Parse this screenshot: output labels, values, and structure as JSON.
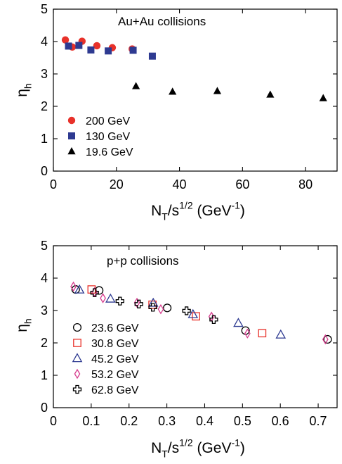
{
  "chart_data": [
    {
      "type": "scatter",
      "title": "Au+Au collisions",
      "xlabel": "N_T/s^{1/2} (GeV^{-1})",
      "ylabel": "η_h",
      "xlim": [
        0,
        90
      ],
      "ylim": [
        0,
        5
      ],
      "xticks": [
        0,
        20,
        40,
        60,
        80
      ],
      "yticks": [
        0,
        1,
        2,
        3,
        4,
        5
      ],
      "grid": false,
      "legend_position": "bottom-left",
      "series": [
        {
          "name": "200 GeV",
          "marker": "filled-circle",
          "color": "#e8312a",
          "x": [
            3.8,
            6.0,
            9.1,
            13.8,
            18.7,
            25.0
          ],
          "y": [
            4.05,
            3.83,
            4.01,
            3.87,
            3.81,
            3.77
          ]
        },
        {
          "name": "130 GeV",
          "marker": "filled-square",
          "color": "#2e3a91",
          "x": [
            4.8,
            8.1,
            11.9,
            17.4,
            25.3,
            31.4
          ],
          "y": [
            3.86,
            3.88,
            3.74,
            3.71,
            3.73,
            3.55
          ]
        },
        {
          "name": "19.6 GeV",
          "marker": "filled-triangle",
          "color": "#000000",
          "x": [
            26.2,
            37.8,
            52.0,
            68.8,
            85.6
          ],
          "y": [
            2.62,
            2.45,
            2.47,
            2.36,
            2.25
          ]
        }
      ]
    },
    {
      "type": "scatter",
      "title": "p+p collisions",
      "xlabel": "N_T/s^{1/2} (GeV^{-1})",
      "ylabel": "η_h",
      "xlim": [
        0,
        0.75
      ],
      "ylim": [
        0,
        5
      ],
      "xticks": [
        0,
        0.1,
        0.2,
        0.3,
        0.4,
        0.5,
        0.6,
        0.7
      ],
      "yticks": [
        0,
        1,
        2,
        3,
        4,
        5
      ],
      "grid": false,
      "legend_position": "bottom-left",
      "series": [
        {
          "name": "23.6 GeV",
          "marker": "open-circle",
          "color": "#000000",
          "x": [
            0.059,
            0.121,
            0.301,
            0.508,
            0.725
          ],
          "y": [
            3.65,
            3.62,
            3.08,
            2.38,
            2.11
          ]
        },
        {
          "name": "30.8 GeV",
          "marker": "open-square",
          "color": "#e8312a",
          "x": [
            0.101,
            0.262,
            0.377,
            0.552
          ],
          "y": [
            3.65,
            3.18,
            2.82,
            2.3
          ]
        },
        {
          "name": "45.2 GeV",
          "marker": "open-triangle",
          "color": "#2e3a91",
          "x": [
            0.069,
            0.151,
            0.264,
            0.369,
            0.489,
            0.601
          ],
          "y": [
            3.64,
            3.36,
            3.23,
            2.88,
            2.61,
            2.25
          ]
        },
        {
          "name": "53.2 GeV",
          "marker": "open-diamond",
          "color": "#d63a8c",
          "x": [
            0.053,
            0.109,
            0.131,
            0.221,
            0.284,
            0.418,
            0.513,
            0.719
          ],
          "y": [
            3.74,
            3.57,
            3.38,
            3.24,
            3.04,
            2.81,
            2.29,
            2.11
          ]
        },
        {
          "name": "62.8 GeV",
          "marker": "open-cross",
          "color": "#000000",
          "x": [
            0.109,
            0.176,
            0.226,
            0.263,
            0.352,
            0.424
          ],
          "y": [
            3.55,
            3.29,
            3.2,
            3.1,
            2.99,
            2.72
          ]
        }
      ]
    }
  ]
}
